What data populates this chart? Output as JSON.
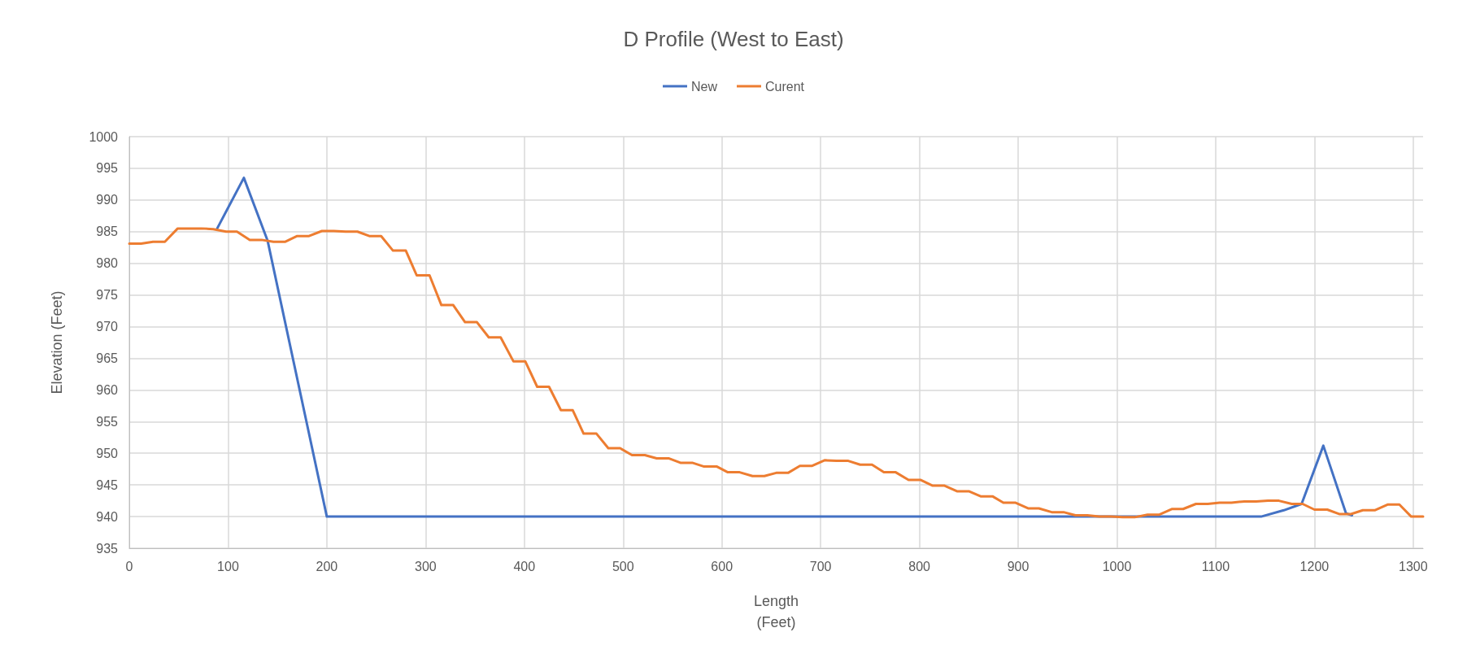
{
  "chart_data": {
    "type": "line",
    "title": "D Profile (West to East)",
    "xlabel": "Length\n(Feet)",
    "ylabel": "Elevation (Feet)",
    "xlim": [
      0,
      1310
    ],
    "xticks": [
      0,
      100,
      200,
      300,
      400,
      500,
      600,
      700,
      800,
      900,
      1000,
      1100,
      1200,
      1300
    ],
    "ylim": [
      935,
      1000
    ],
    "yticks": [
      935,
      940,
      945,
      950,
      955,
      960,
      965,
      970,
      975,
      980,
      985,
      990,
      995,
      1000
    ],
    "grid": true,
    "legend": "top",
    "marker": "none",
    "line_style": "solid",
    "series": [
      {
        "name": "New",
        "color": "#4472c4",
        "x": [
          89,
          116,
          140,
          200,
          1146,
          1169,
          1187,
          1209,
          1232,
          1238
        ],
        "values": [
          985.5,
          993.5,
          983.6,
          940,
          940,
          941.0,
          942.0,
          951.2,
          940.5,
          940.2
        ]
      },
      {
        "name": "Curent",
        "color": "#ed7d31",
        "x": [
          0,
          12,
          24,
          36,
          49,
          61,
          73,
          85,
          98,
          109,
          122,
          134,
          146,
          158,
          170,
          182,
          195,
          207,
          219,
          231,
          243,
          255,
          267,
          280,
          291,
          304,
          316,
          328,
          340,
          352,
          364,
          376,
          389,
          401,
          413,
          425,
          437,
          449,
          460,
          473,
          485,
          497,
          509,
          522,
          534,
          546,
          558,
          570,
          582,
          595,
          606,
          618,
          631,
          643,
          655,
          667,
          679,
          691,
          704,
          716,
          728,
          740,
          752,
          764,
          776,
          789,
          801,
          813,
          825,
          838,
          850,
          862,
          874,
          885,
          897,
          910,
          921,
          934,
          946,
          958,
          970,
          982,
          994,
          1006,
          1018,
          1031,
          1043,
          1056,
          1067,
          1080,
          1092,
          1104,
          1116,
          1129,
          1141,
          1153,
          1164,
          1177,
          1188,
          1200,
          1213,
          1225,
          1237,
          1249,
          1261,
          1274,
          1286,
          1298,
          1310
        ],
        "values": [
          983.1,
          983.1,
          983.4,
          983.4,
          985.5,
          985.5,
          985.5,
          985.4,
          985.0,
          985.0,
          983.7,
          983.7,
          983.4,
          983.4,
          984.3,
          984.3,
          985.1,
          985.1,
          985.0,
          985.0,
          984.3,
          984.3,
          982.0,
          982.0,
          978.1,
          978.1,
          973.4,
          973.4,
          970.7,
          970.7,
          968.3,
          968.3,
          964.5,
          964.5,
          960.5,
          960.5,
          956.8,
          956.8,
          953.1,
          953.1,
          950.8,
          950.8,
          949.7,
          949.7,
          949.2,
          949.2,
          948.5,
          948.5,
          947.9,
          947.9,
          947.0,
          947.0,
          946.4,
          946.4,
          946.9,
          946.9,
          948.0,
          948.0,
          948.9,
          948.8,
          948.8,
          948.2,
          948.2,
          947.0,
          947.0,
          945.8,
          945.8,
          944.9,
          944.9,
          944.0,
          944.0,
          943.2,
          943.2,
          942.2,
          942.2,
          941.3,
          941.3,
          940.7,
          940.7,
          940.2,
          940.2,
          940.0,
          940.0,
          939.9,
          939.9,
          940.3,
          940.3,
          941.2,
          941.2,
          942.0,
          942.0,
          942.2,
          942.2,
          942.4,
          942.4,
          942.5,
          942.5,
          942.0,
          942.0,
          941.1,
          941.1,
          940.4,
          940.4,
          941.0,
          941.0,
          941.9,
          941.9,
          940.0,
          940.0
        ]
      }
    ]
  }
}
